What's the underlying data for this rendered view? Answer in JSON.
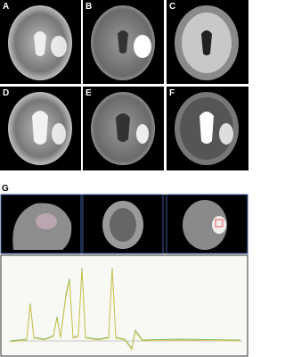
{
  "panels": {
    "labels": [
      "A",
      "B",
      "C",
      "D",
      "E",
      "F",
      "G"
    ]
  }
}
